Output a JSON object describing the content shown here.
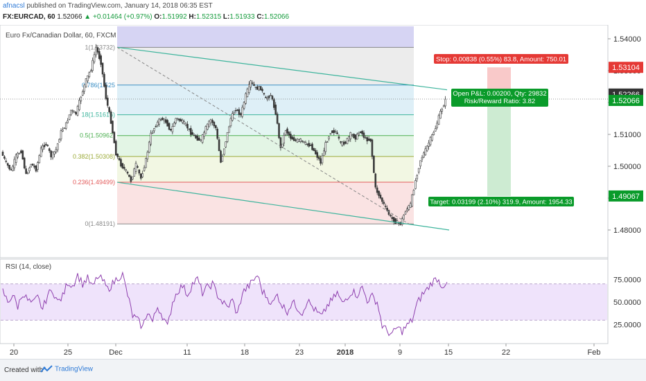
{
  "header": {
    "user": "afnacsl",
    "published": " published on TradingView.com, January 14, 2018 06:35 EST",
    "symbol": "FX:EURCAD, 60",
    "last": "1.52066",
    "change": "▲ +0.01464 (+0.97%)",
    "o_label": "O:",
    "o": "1.51992",
    "h_label": "H:",
    "h": "1.52315",
    "l_label": "L:",
    "l": "1.51933",
    "c_label": "C:",
    "c": "1.52066"
  },
  "footer": {
    "created": "Created with",
    "brand": "TradingView"
  },
  "colors": {
    "candle": "#3a3a3a",
    "trend": "#3cb49c",
    "rsi_line": "#8e3fae",
    "rsi_band": "#efe3fb",
    "stop_fill": "#f9c9c9",
    "target_fill": "#cdebd2",
    "stop_label": "#e53935",
    "target_label": "#0a9b2a"
  },
  "chart_data": [
    {
      "type": "candlestick",
      "title": "Euro Fx/Canadian Dollar, 60, FXCM",
      "x_tick_labels": [
        "20",
        "25",
        "Dec",
        "11",
        "18",
        "23",
        "2018",
        "9",
        "15",
        "22",
        "Feb"
      ],
      "y_tick_labels": [
        "1.54000",
        "1.53000",
        "1.52000",
        "1.51000",
        "1.50000",
        "1.49000",
        "1.48000"
      ],
      "ylim": [
        1.476,
        1.543
      ],
      "grid": false,
      "close_path": [
        1.5045,
        1.501,
        1.4985,
        1.5032,
        1.5048,
        1.4972,
        1.5008,
        1.499,
        1.5055,
        1.5072,
        1.5032,
        1.5052,
        1.5108,
        1.5132,
        1.5176,
        1.5165,
        1.522,
        1.527,
        1.5305,
        1.5373,
        1.5325,
        1.5215,
        1.514,
        1.504,
        1.5005,
        1.4985,
        1.4955,
        1.5005,
        1.4962,
        1.502,
        1.51,
        1.513,
        1.515,
        1.514,
        1.511,
        1.515,
        1.5143,
        1.513,
        1.5105,
        1.509,
        1.508,
        1.512,
        1.5145,
        1.512,
        1.5012,
        1.508,
        1.515,
        1.518,
        1.516,
        1.5223,
        1.5265,
        1.5245,
        1.5245,
        1.521,
        1.5225,
        1.5168,
        1.5055,
        1.5115,
        1.509,
        1.508,
        1.5082,
        1.507,
        1.5065,
        1.504,
        1.5012,
        1.507,
        1.5108,
        1.511,
        1.507,
        1.5075,
        1.51,
        1.509,
        1.511,
        1.5085,
        1.5082,
        1.493,
        1.49,
        1.487,
        1.484,
        1.4825,
        1.482,
        1.486,
        1.488,
        1.4955,
        1.502,
        1.505,
        1.5085,
        1.512,
        1.517,
        1.5206
      ],
      "fibonacci": [
        {
          "level": "1",
          "price": 1.53732
        },
        {
          "level": "0.786",
          "price": 1.52548
        },
        {
          "level": "0.618",
          "price": 1.51616
        },
        {
          "level": "0.5",
          "price": 1.50962
        },
        {
          "level": "0.382",
          "price": 1.50308
        },
        {
          "level": "0.236",
          "price": 1.49499
        },
        {
          "level": "0",
          "price": 1.48191
        }
      ],
      "fib_label_level_1": "1(1.53732)",
      "fib_label_level_0786": "0.786(1.525",
      "fib_label_level_0618": "18(1.51616)",
      "fib_label_level_05": "0.5(1.50962)",
      "fib_label_level_0382": "0.382(1.50308)",
      "fib_label_level_0236": "0.236(1.49499)",
      "fib_label_level_0": "0(1.48191)",
      "position": {
        "stop_label": "Stop: 0.00838 (0.55%) 83.8, Amount: 750.01",
        "pnl_line1": "Open P&L: 0.00200, Qty: 29832",
        "pnl_line2": "Risk/Reward Ratio: 3.82",
        "target_label": "Target: 0.03199 (2.10%) 319.9, Amount: 1954.33",
        "stop_price": 1.53104,
        "entry_price": 1.52266,
        "target_price": 1.49067
      },
      "price_badges": [
        {
          "label": "1.53104",
          "value": 1.53104,
          "color": "#e53935"
        },
        {
          "label": "1.52266",
          "value": 1.52266,
          "color": "#333333"
        },
        {
          "label": "1.52066",
          "value": 1.52066,
          "color": "#0a9b2a"
        },
        {
          "label": "1.49067",
          "value": 1.49067,
          "color": "#0a9b2a"
        }
      ]
    },
    {
      "type": "line",
      "title": "RSI (14, close)",
      "y_tick_labels": [
        "75.0000",
        "50.0000",
        "25.0000"
      ],
      "ylim": [
        8,
        92
      ],
      "band": [
        30,
        70
      ],
      "values": [
        62,
        50,
        58,
        45,
        60,
        52,
        48,
        55,
        42,
        58,
        63,
        50,
        56,
        72,
        68,
        80,
        70,
        76,
        66,
        78,
        74,
        64,
        70,
        77,
        80,
        58,
        35,
        30,
        22,
        40,
        28,
        45,
        35,
        22,
        50,
        62,
        68,
        58,
        70,
        75,
        60,
        66,
        70,
        58,
        50,
        44,
        52,
        36,
        60,
        66,
        72,
        80,
        62,
        55,
        48,
        58,
        46,
        40,
        50,
        44,
        38,
        52,
        45,
        38,
        34,
        46,
        52,
        60,
        48,
        56,
        62,
        58,
        66,
        52,
        56,
        50,
        24,
        18,
        14,
        22,
        18,
        24,
        30,
        48,
        58,
        64,
        72,
        76,
        68,
        72
      ]
    }
  ]
}
